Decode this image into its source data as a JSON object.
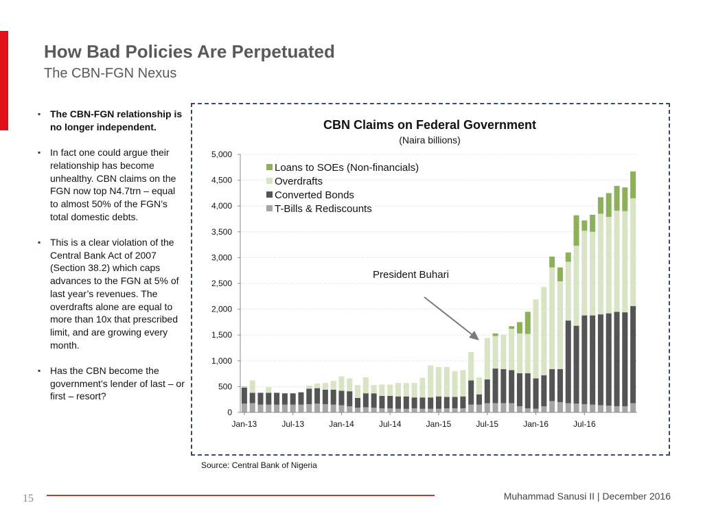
{
  "slide": {
    "title": "How Bad Policies Are Perpetuated",
    "subtitle": "The CBN-FGN Nexus",
    "page_number": "15",
    "footer_author": "Muhammad Sanusi II   |   December 2016",
    "source": "Source: Central Bank of Nigeria",
    "bullets": [
      "The CBN-FGN relationship is no longer independent.",
      "In fact one could argue their relationship has become unhealthy. CBN claims on the FGN now top  N4.7trn – equal to almost 50% of the FGN’s total domestic debts.",
      "This is a clear violation of the Central Bank Act of 2007 (Section 38.2) which caps advances to the FGN at 5% of last year’s revenues. The overdrafts alone are equal to more than 10x that prescribed limit, and are growing every month.",
      "Has the CBN become the government’s lender of last – or first – resort?"
    ]
  },
  "colors": {
    "accent_red": "#e2101b",
    "loans": "#8db05a",
    "overdrafts": "#d8e4c4",
    "bonds": "#545454",
    "tbills": "#a6a6a6"
  },
  "chart_data": {
    "type": "bar",
    "stacked": true,
    "title": "CBN Claims on Federal Government",
    "subtitle": "(Naira billions)",
    "annotation": "President Buhari",
    "ylim": [
      0,
      5000
    ],
    "yticks": [
      "0",
      "500",
      "1,000",
      "1,500",
      "2,000",
      "2,500",
      "3,000",
      "3,500",
      "4,000",
      "4,500",
      "5,000"
    ],
    "ytick_values": [
      0,
      500,
      1000,
      1500,
      2000,
      2500,
      3000,
      3500,
      4000,
      4500,
      5000
    ],
    "xtick_labels": [
      "Jan-13",
      "Jul-13",
      "Jan-14",
      "Jul-14",
      "Jan-15",
      "Jul-15",
      "Jan-16",
      "Jul-16"
    ],
    "xtick_index": [
      0,
      6,
      12,
      18,
      24,
      30,
      36,
      42
    ],
    "legend": [
      "Loans to SOEs (Non-financials)",
      "Overdrafts",
      "Converted Bonds",
      "T-Bills & Rediscounts"
    ],
    "series": [
      {
        "name": "T-Bills & Rediscounts",
        "values": [
          170,
          180,
          150,
          150,
          150,
          150,
          150,
          150,
          160,
          170,
          160,
          150,
          140,
          120,
          90,
          100,
          90,
          80,
          80,
          70,
          70,
          80,
          70,
          70,
          70,
          80,
          80,
          80,
          150,
          150,
          180,
          180,
          180,
          180,
          120,
          80,
          70,
          120,
          220,
          200,
          180,
          170,
          160,
          150,
          140,
          130,
          120,
          120,
          180
        ]
      },
      {
        "name": "Converted Bonds",
        "values": [
          310,
          200,
          230,
          230,
          230,
          220,
          220,
          240,
          300,
          300,
          280,
          290,
          280,
          290,
          190,
          270,
          280,
          240,
          240,
          240,
          240,
          210,
          220,
          220,
          240,
          220,
          220,
          230,
          470,
          200,
          460,
          670,
          660,
          640,
          640,
          680,
          590,
          600,
          620,
          640,
          1600,
          1510,
          1720,
          1730,
          1760,
          1790,
          1830,
          1820,
          1880
        ]
      },
      {
        "name": "Overdrafts",
        "values": [
          10,
          240,
          0,
          110,
          0,
          0,
          0,
          0,
          60,
          90,
          130,
          170,
          280,
          250,
          250,
          310,
          160,
          220,
          220,
          260,
          260,
          280,
          380,
          620,
          570,
          580,
          500,
          510,
          550,
          330,
          800,
          630,
          670,
          800,
          770,
          760,
          1530,
          1710,
          1970,
          1700,
          1140,
          1550,
          1640,
          1620,
          1950,
          1870,
          1960,
          1960,
          2090
        ]
      },
      {
        "name": "Loans to SOEs (Non-financials)",
        "values": [
          10,
          0,
          0,
          0,
          0,
          0,
          0,
          0,
          0,
          0,
          0,
          0,
          0,
          0,
          0,
          0,
          0,
          0,
          0,
          0,
          0,
          0,
          0,
          0,
          0,
          0,
          0,
          0,
          0,
          0,
          0,
          50,
          0,
          50,
          220,
          430,
          0,
          0,
          210,
          270,
          180,
          590,
          200,
          330,
          320,
          460,
          480,
          460,
          520
        ]
      }
    ]
  }
}
